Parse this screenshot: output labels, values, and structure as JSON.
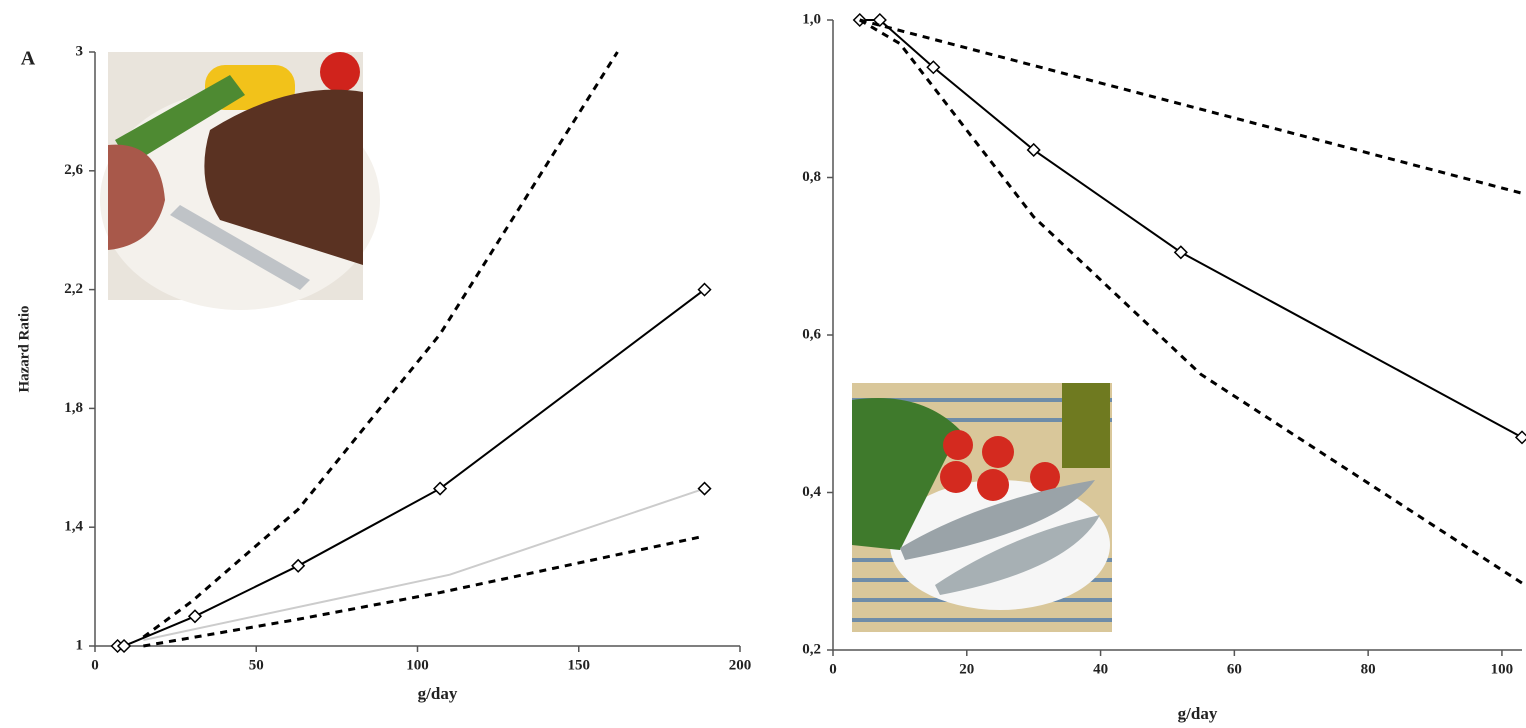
{
  "chart_data": [
    {
      "type": "line",
      "panel_label": "A",
      "ylabel": "Hazard Ratio",
      "xlabel": "g/day",
      "xlim": [
        0,
        200
      ],
      "xticks": [
        0,
        50,
        100,
        150,
        200
      ],
      "ylim": [
        1,
        3
      ],
      "yticks": [
        1,
        {
          "value": 1.4,
          "label": "1,4"
        },
        {
          "value": 1.8,
          "label": "1,8"
        },
        {
          "value": 2.2,
          "label": "2,2"
        },
        {
          "value": 2.6,
          "label": "2,6"
        },
        3
      ],
      "series": [
        {
          "color": "#000000",
          "style": "solid",
          "markers": true,
          "x": [
            7,
            9,
            31,
            63,
            107,
            189
          ],
          "values": [
            1.0,
            1.0,
            1.1,
            1.27,
            1.53,
            2.2
          ]
        },
        {
          "color": "#000000",
          "style": "dashed",
          "markers": false,
          "x": [
            15,
            30,
            63,
            107,
            162
          ],
          "values": [
            1.03,
            1.15,
            1.46,
            2.05,
            3.0
          ]
        },
        {
          "color": "#000000",
          "style": "dashed",
          "markers": false,
          "x": [
            15,
            63,
            107,
            189
          ],
          "values": [
            1.0,
            1.09,
            1.18,
            1.37
          ]
        },
        {
          "color": "#cccccc",
          "style": "solid",
          "markers": false,
          "x": [
            15,
            110,
            189
          ],
          "values": [
            1.02,
            1.24,
            1.53
          ]
        },
        {
          "color": "#000000",
          "style": "none",
          "markers": true,
          "x": [
            189
          ],
          "values": [
            1.53
          ]
        }
      ]
    },
    {
      "type": "line",
      "xlabel": "g/day",
      "xlim": [
        0,
        103
      ],
      "xticks": [
        0,
        20,
        40,
        60,
        80,
        100
      ],
      "ylim": [
        0.2,
        1.0
      ],
      "yticks": [
        {
          "value": 0.2,
          "label": "0,2"
        },
        {
          "value": 0.4,
          "label": "0,4"
        },
        {
          "value": 0.6,
          "label": "0,6"
        },
        {
          "value": 0.8,
          "label": "0,8"
        },
        {
          "value": 1.0,
          "label": "1,0"
        }
      ],
      "series": [
        {
          "color": "#000000",
          "style": "solid",
          "markers": true,
          "x": [
            4,
            7,
            15,
            30,
            52,
            103
          ],
          "values": [
            1.0,
            1.0,
            0.94,
            0.835,
            0.705,
            0.47
          ]
        },
        {
          "color": "#000000",
          "style": "dashed",
          "markers": false,
          "x": [
            4,
            103
          ],
          "values": [
            1.0,
            0.78
          ]
        },
        {
          "color": "#000000",
          "style": "dashed",
          "markers": false,
          "x": [
            4,
            10,
            30,
            55,
            103
          ],
          "values": [
            1.0,
            0.97,
            0.75,
            0.55,
            0.285
          ]
        }
      ]
    }
  ]
}
